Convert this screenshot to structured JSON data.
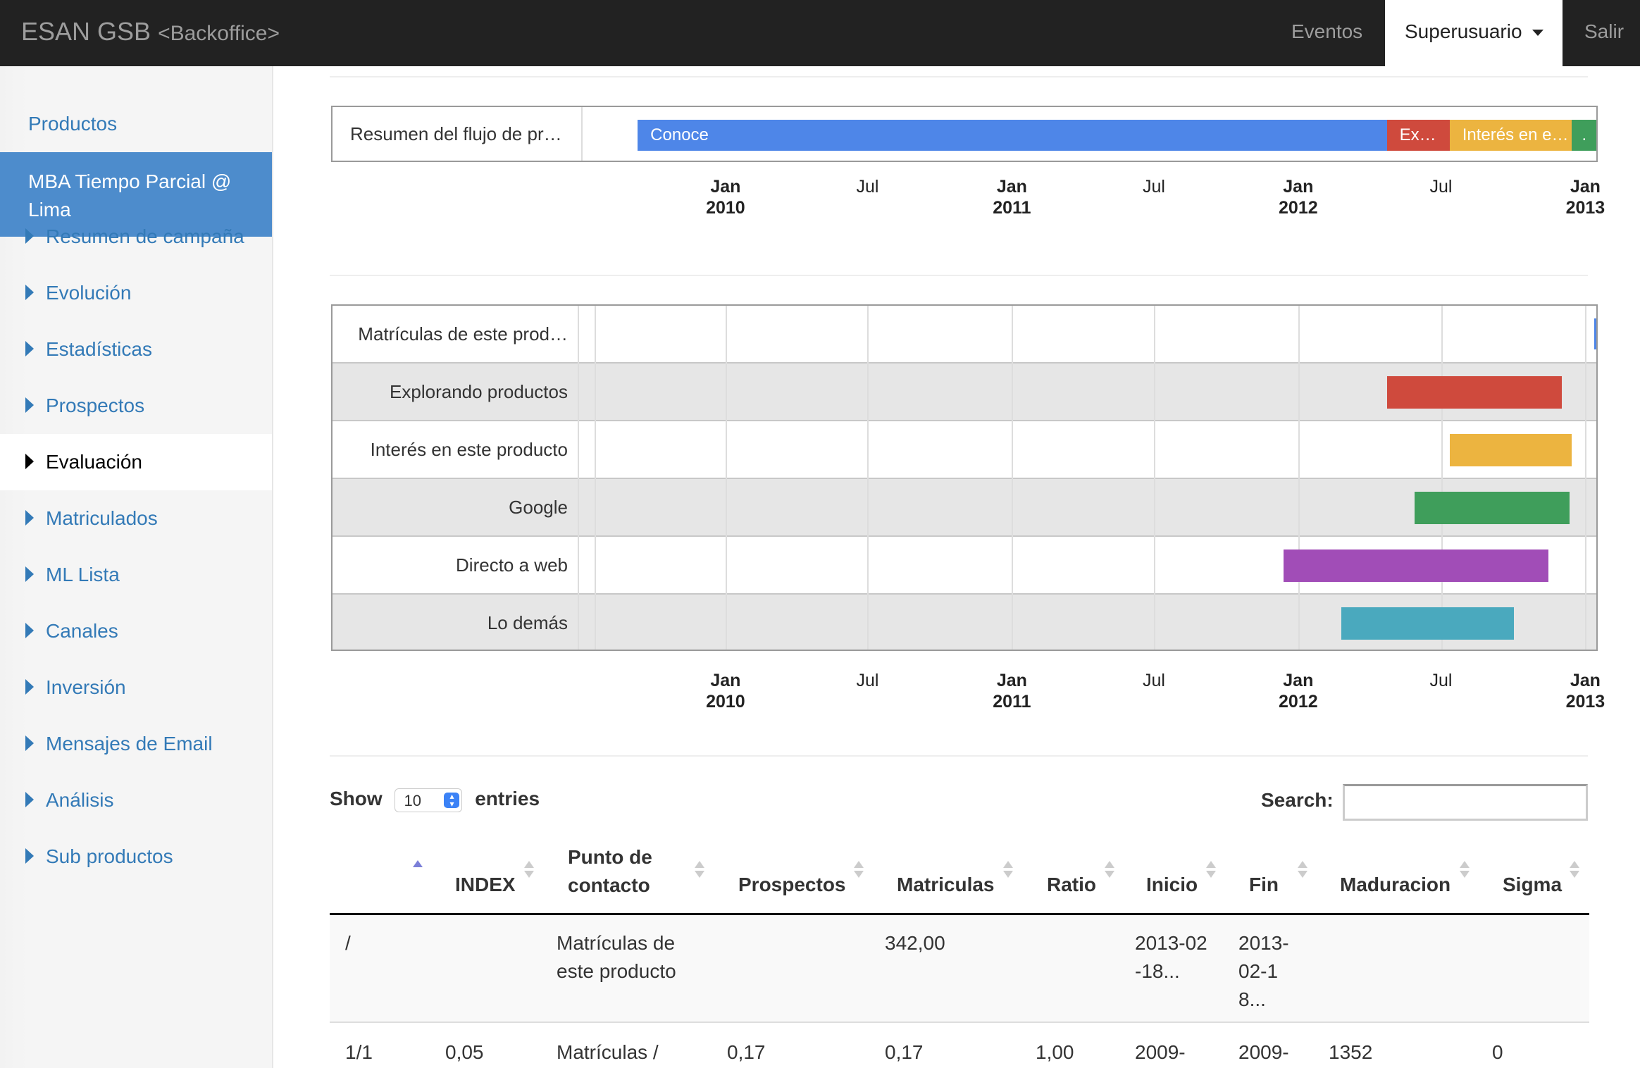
{
  "navbar": {
    "brand": "ESAN GSB",
    "brand_sub": "<Backoffice>",
    "links": {
      "eventos": "Eventos",
      "superusuario": "Superusuario",
      "salir": "Salir"
    }
  },
  "sidebar": {
    "top_link": "Productos",
    "active_product": "MBA Tiempo Parcial @ Lima",
    "items": [
      {
        "label": "Resumen de campaña"
      },
      {
        "label": "Evolución"
      },
      {
        "label": "Estadísticas"
      },
      {
        "label": "Prospectos"
      },
      {
        "label": "Evaluación"
      },
      {
        "label": "Matriculados"
      },
      {
        "label": "ML Lista"
      },
      {
        "label": "Canales"
      },
      {
        "label": "Inversión"
      },
      {
        "label": "Mensajes de Email"
      },
      {
        "label": "Análisis"
      },
      {
        "label": "Sub productos"
      }
    ],
    "current_item": "Evaluación"
  },
  "summary_timeline": {
    "row_label": "Resumen del flujo de pr…",
    "axis_start": "2009-07-01",
    "axis_end": "2013-01-15",
    "segments": [
      {
        "label": "Conoce",
        "start": "2009-09-11",
        "end": "2012-04-23",
        "color": "#4e86e8"
      },
      {
        "label": "Ex…",
        "start": "2012-04-23",
        "end": "2012-07-12",
        "color": "#cf4a3d"
      },
      {
        "label": "Interés en e…",
        "start": "2012-07-12",
        "end": "2012-12-15",
        "color": "#ecb440"
      },
      {
        "label": ".",
        "start": "2012-12-15",
        "end": "2013-01-15",
        "color": "#3f9e5b"
      }
    ],
    "axis_ticks": [
      {
        "month": "Jan",
        "year": "2010",
        "date": "2010-01-01"
      },
      {
        "month": "Jul",
        "year": "",
        "date": "2010-07-01"
      },
      {
        "month": "Jan",
        "year": "2011",
        "date": "2011-01-01"
      },
      {
        "month": "Jul",
        "year": "",
        "date": "2011-07-01"
      },
      {
        "month": "Jan",
        "year": "2012",
        "date": "2012-01-01"
      },
      {
        "month": "Jul",
        "year": "",
        "date": "2012-07-01"
      },
      {
        "month": "Jan",
        "year": "2013",
        "date": "2013-01-01"
      }
    ]
  },
  "detail_timeline": {
    "axis_start": "2009-07-01",
    "axis_end": "2013-01-15",
    "rows": [
      {
        "label": "Matrículas de este prod…",
        "start": "2013-01-12",
        "end": "2013-01-15",
        "color": "#4e86e8"
      },
      {
        "label": "Explorando productos",
        "start": "2012-04-23",
        "end": "2012-12-02",
        "color": "#cf4a3d"
      },
      {
        "label": "Interés en este producto",
        "start": "2012-07-12",
        "end": "2012-12-15",
        "color": "#ecb440"
      },
      {
        "label": "Google",
        "start": "2012-05-28",
        "end": "2012-12-12",
        "color": "#3f9e5b"
      },
      {
        "label": "Directo a web",
        "start": "2011-12-13",
        "end": "2012-11-15",
        "color": "#a14db7"
      },
      {
        "label": "Lo demás",
        "start": "2012-02-25",
        "end": "2012-10-02",
        "color": "#4aa9be"
      }
    ],
    "axis_ticks": [
      {
        "month": "Jan",
        "year": "2010"
      },
      {
        "month": "Jul",
        "year": ""
      },
      {
        "month": "Jan",
        "year": "2011"
      },
      {
        "month": "Jul",
        "year": ""
      },
      {
        "month": "Jan",
        "year": "2012"
      },
      {
        "month": "Jul",
        "year": ""
      },
      {
        "month": "Jan",
        "year": "2013"
      }
    ]
  },
  "datatable": {
    "show_label": "Show",
    "page_size": "10",
    "entries_label": "entries",
    "search_label": "Search:",
    "search_value": "",
    "columns": [
      {
        "label": ""
      },
      {
        "label": "INDEX"
      },
      {
        "label": "Punto de contacto"
      },
      {
        "label": "Prospectos"
      },
      {
        "label": "Matriculas"
      },
      {
        "label": "Ratio"
      },
      {
        "label": "Inicio"
      },
      {
        "label": "Fin"
      },
      {
        "label": "Maduracion"
      },
      {
        "label": "Sigma"
      }
    ],
    "rows": [
      {
        "c0": "/",
        "c1": "",
        "c2": "Matrículas de este producto",
        "c3": "",
        "c4": "342,00",
        "c5": "",
        "c6": "2013-02-18...",
        "c7": "2013-02-18...",
        "c8": "",
        "c9": ""
      },
      {
        "c0": "1/1",
        "c1": "0,05",
        "c2": "Matrículas /",
        "c3": "0,17",
        "c4": "0,17",
        "c5": "1,00",
        "c6": "2009-",
        "c7": "2009-",
        "c8": "1352",
        "c9": "0"
      }
    ]
  }
}
